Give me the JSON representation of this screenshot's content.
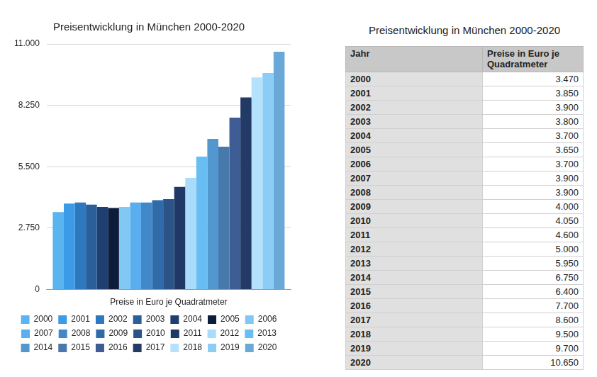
{
  "chart_data": {
    "type": "bar",
    "title": "Preisentwicklung in München 2000-2020",
    "categories": [
      "Preise in Euro je Quadratmeter"
    ],
    "series": [
      {
        "name": "2000",
        "color": "#5ab4f0",
        "values": [
          3470
        ]
      },
      {
        "name": "2001",
        "color": "#3c9be6",
        "values": [
          3850
        ]
      },
      {
        "name": "2002",
        "color": "#2e78c0",
        "values": [
          3900
        ]
      },
      {
        "name": "2003",
        "color": "#2a5f9a",
        "values": [
          3800
        ]
      },
      {
        "name": "2004",
        "color": "#1e3f70",
        "values": [
          3700
        ]
      },
      {
        "name": "2005",
        "color": "#0e1c3c",
        "values": [
          3650
        ]
      },
      {
        "name": "2006",
        "color": "#82c8f5",
        "values": [
          3700
        ]
      },
      {
        "name": "2007",
        "color": "#5aaeef",
        "values": [
          3900
        ]
      },
      {
        "name": "2008",
        "color": "#4088c8",
        "values": [
          3900
        ]
      },
      {
        "name": "2009",
        "color": "#2f6ba8",
        "values": [
          4000
        ]
      },
      {
        "name": "2010",
        "color": "#2a5488",
        "values": [
          4050
        ]
      },
      {
        "name": "2011",
        "color": "#1f3866",
        "values": [
          4600
        ]
      },
      {
        "name": "2012",
        "color": "#a8dcfa",
        "values": [
          5000
        ]
      },
      {
        "name": "2013",
        "color": "#68bdf2",
        "values": [
          5950
        ]
      },
      {
        "name": "2014",
        "color": "#5297cd",
        "values": [
          6750
        ]
      },
      {
        "name": "2015",
        "color": "#4879ad",
        "values": [
          6400
        ]
      },
      {
        "name": "2016",
        "color": "#3d5d94",
        "values": [
          7700
        ]
      },
      {
        "name": "2017",
        "color": "#243a66",
        "values": [
          8600
        ]
      },
      {
        "name": "2018",
        "color": "#b4e2fc",
        "values": [
          9500
        ]
      },
      {
        "name": "2019",
        "color": "#8ccdf6",
        "values": [
          9700
        ]
      },
      {
        "name": "2020",
        "color": "#6aa8d8",
        "values": [
          10650
        ]
      }
    ],
    "ylim": [
      0,
      11000
    ],
    "yticks": [
      0,
      {
        "value": 2750,
        "label": "2.750"
      },
      {
        "value": 5500,
        "label": "5.500"
      },
      {
        "value": 8250,
        "label": "8.250"
      },
      {
        "value": 11000,
        "label": "11.000"
      }
    ],
    "grid": true,
    "legend": "bottom"
  },
  "table": {
    "title": "Preisentwicklung in München 2000-2020",
    "header": [
      "Jahr",
      "Preise in Euro je Quadratmeter"
    ],
    "rows": [
      [
        "2000",
        "3.470"
      ],
      [
        "2001",
        "3.850"
      ],
      [
        "2002",
        "3.900"
      ],
      [
        "2003",
        "3.800"
      ],
      [
        "2004",
        "3.700"
      ],
      [
        "2005",
        "3.650"
      ],
      [
        "2006",
        "3.700"
      ],
      [
        "2007",
        "3.900"
      ],
      [
        "2008",
        "3.900"
      ],
      [
        "2009",
        "4.000"
      ],
      [
        "2010",
        "4.050"
      ],
      [
        "2011",
        "4.600"
      ],
      [
        "2012",
        "5.000"
      ],
      [
        "2013",
        "5.950"
      ],
      [
        "2014",
        "6.750"
      ],
      [
        "2015",
        "6.400"
      ],
      [
        "2016",
        "7.700"
      ],
      [
        "2017",
        "8.600"
      ],
      [
        "2018",
        "9.500"
      ],
      [
        "2019",
        "9.700"
      ],
      [
        "2020",
        "10.650"
      ]
    ]
  }
}
